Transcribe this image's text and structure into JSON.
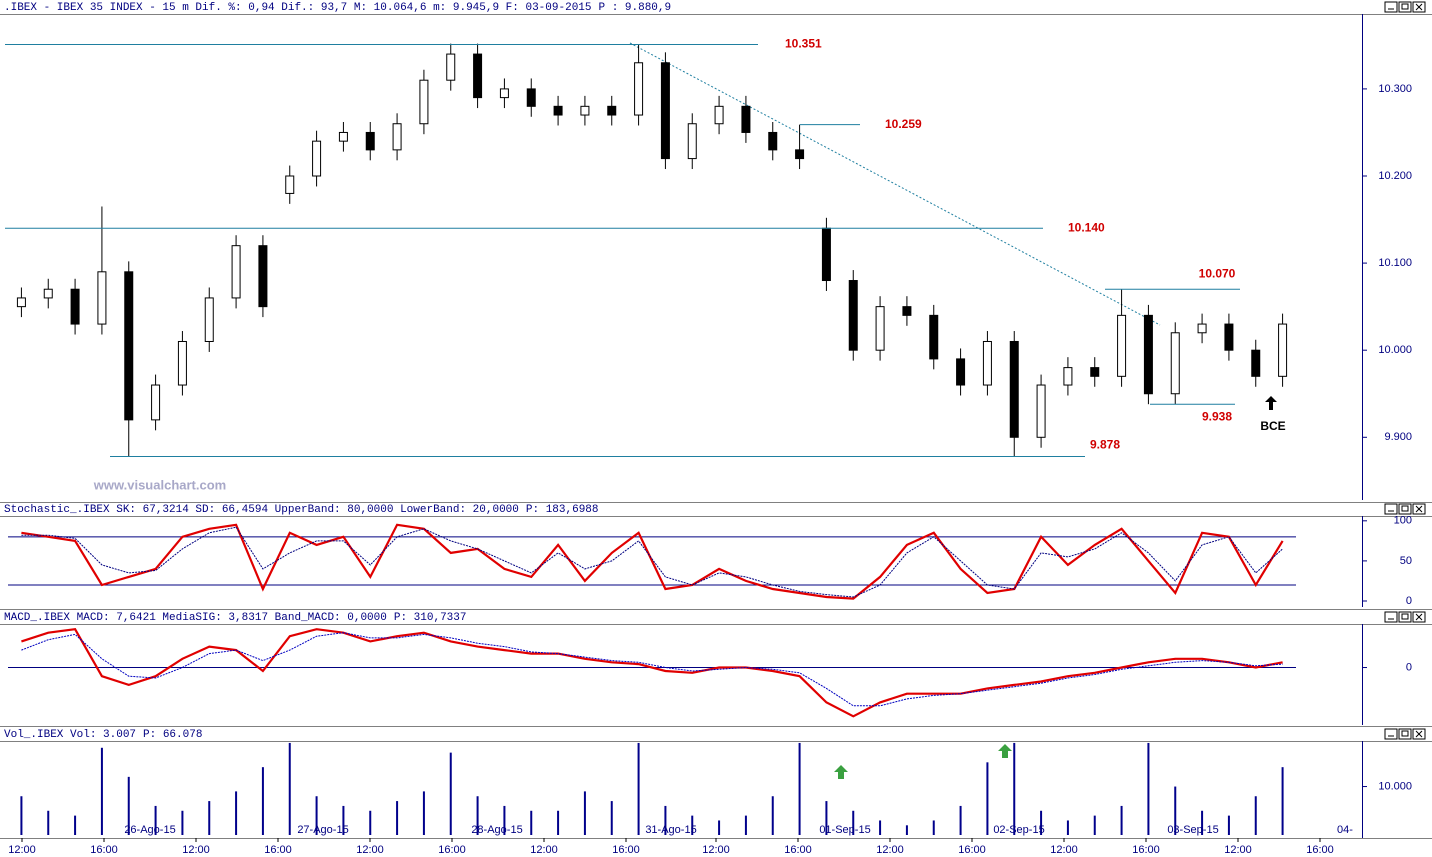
{
  "chart_data": [
    {
      "type": "candlestick",
      "title": ".IBEX - IBEX 35 INDEX -  15 m Dif. %: 0,94 Dif.: 93,7 M: 10.064,6 m: 9.945,9 F: 03-09-2015",
      "title_p": "P : 9.880,9",
      "watermark": "www.visualchart.com",
      "open": [
        10050,
        10060,
        10070,
        10030,
        10090,
        9920,
        9960,
        10010,
        10060,
        10120,
        10180,
        10200,
        10240,
        10250,
        10230,
        10260,
        10310,
        10340,
        10290,
        10300,
        10280,
        10270,
        10280,
        10270,
        10330,
        10220,
        10260,
        10280,
        10250,
        10230,
        10140,
        10080,
        10000,
        10050,
        10040,
        9990,
        9960,
        10010,
        9900,
        9960,
        9980,
        9970,
        10040,
        9950,
        10020,
        10030,
        10000,
        9970
      ],
      "high": [
        10072,
        10082,
        10082,
        10165,
        10102,
        9972,
        10022,
        10072,
        10132,
        10132,
        10212,
        10252,
        10262,
        10262,
        10272,
        10322,
        10352,
        10352,
        10312,
        10312,
        10292,
        10292,
        10292,
        10351,
        10342,
        10272,
        10292,
        10292,
        10262,
        10259,
        10152,
        10092,
        10062,
        10062,
        10052,
        10002,
        10022,
        10022,
        9972,
        9992,
        9992,
        10070,
        10052,
        10032,
        10042,
        10042,
        10012,
        10042
      ],
      "low": [
        10038,
        10048,
        10018,
        10018,
        9878,
        9908,
        9948,
        9998,
        10048,
        10038,
        10168,
        10188,
        10228,
        10218,
        10218,
        10248,
        10298,
        10278,
        10278,
        10268,
        10258,
        10258,
        10258,
        10258,
        10208,
        10208,
        10248,
        10238,
        10218,
        10208,
        10068,
        9988,
        9988,
        10028,
        9978,
        9948,
        9948,
        9878,
        9888,
        9948,
        9958,
        9958,
        9938,
        9938,
        10008,
        9988,
        9958,
        9958
      ],
      "close": [
        10060,
        10070,
        10030,
        10090,
        9920,
        9960,
        10010,
        10060,
        10120,
        10050,
        10200,
        10240,
        10250,
        10230,
        10260,
        10310,
        10340,
        10290,
        10300,
        10280,
        10270,
        10280,
        10270,
        10330,
        10220,
        10260,
        10280,
        10250,
        10230,
        10220,
        10080,
        10000,
        10050,
        10040,
        9990,
        9960,
        10010,
        9900,
        9960,
        9980,
        9970,
        10040,
        9950,
        10020,
        10030,
        10000,
        9970,
        10030
      ],
      "up_color": "#ffffff",
      "down_color": "#000000",
      "ylim": [
        9828,
        10386
      ],
      "yticks": [
        {
          "value": 9900,
          "label": "9.900"
        },
        {
          "value": 10000,
          "label": "10.000"
        },
        {
          "value": 10100,
          "label": "10.100"
        },
        {
          "value": 10200,
          "label": "10.200"
        },
        {
          "value": 10300,
          "label": "10.300"
        }
      ],
      "levels": [
        {
          "value": 10351,
          "label": "10.351"
        },
        {
          "value": 10259,
          "label": "10.259"
        },
        {
          "value": 10140,
          "label": "10.140"
        },
        {
          "value": 10070,
          "label": "10.070"
        },
        {
          "value": 9938,
          "label": "9.938"
        },
        {
          "value": 9878,
          "label": "9.878"
        }
      ],
      "annotation": "BCE"
    },
    {
      "type": "line",
      "title": "Stochastic_.IBEX SK: 67,3214 SD: 66,4594 UpperBand: 80,0000 LowerBand: 20,0000",
      "title_p": "P: 183,6988",
      "series": [
        {
          "name": "SK",
          "color": "#e00000",
          "values": [
            85,
            80,
            75,
            20,
            30,
            40,
            80,
            90,
            95,
            15,
            85,
            70,
            80,
            30,
            95,
            90,
            60,
            65,
            40,
            30,
            70,
            25,
            60,
            85,
            15,
            20,
            40,
            25,
            15,
            10,
            5,
            3,
            30,
            70,
            85,
            40,
            10,
            15,
            80,
            45,
            70,
            90,
            50,
            10,
            85,
            80,
            20,
            75
          ]
        },
        {
          "name": "SD",
          "color": "#000080",
          "values": [
            82,
            82,
            78,
            45,
            35,
            38,
            65,
            85,
            92,
            40,
            60,
            75,
            75,
            45,
            80,
            90,
            75,
            65,
            50,
            35,
            60,
            40,
            50,
            75,
            30,
            20,
            35,
            30,
            20,
            12,
            8,
            5,
            20,
            60,
            80,
            50,
            20,
            15,
            60,
            55,
            65,
            85,
            60,
            25,
            70,
            80,
            35,
            65
          ]
        }
      ],
      "bands": [
        20,
        80
      ],
      "ylim": [
        -7.5,
        106
      ],
      "yticks": [
        0,
        50,
        100
      ]
    },
    {
      "type": "line",
      "title": "MACD_.IBEX MACD: 7,6421 MediaSIG: 3,8317 Band_MACD: 0,0000",
      "title_p": "P: 310,7337",
      "series": [
        {
          "name": "MACD",
          "color": "#e00000",
          "values": [
            15,
            20,
            22,
            -5,
            -10,
            -5,
            5,
            12,
            10,
            -2,
            18,
            22,
            20,
            15,
            18,
            20,
            15,
            12,
            10,
            8,
            8,
            5,
            3,
            2,
            -2,
            -3,
            0,
            0,
            -2,
            -5,
            -20,
            -28,
            -20,
            -15,
            -15,
            -15,
            -12,
            -10,
            -8,
            -5,
            -3,
            0,
            3,
            5,
            5,
            3,
            0,
            3
          ]
        },
        {
          "name": "MediaSIG",
          "color": "#0000c0",
          "values": [
            10,
            16,
            19,
            5,
            -5,
            -6,
            0,
            8,
            10,
            4,
            10,
            18,
            20,
            17,
            17,
            19,
            17,
            14,
            12,
            9,
            8,
            6,
            4,
            3,
            0,
            -2,
            -1,
            0,
            -1,
            -3,
            -12,
            -22,
            -22,
            -18,
            -16,
            -15,
            -13,
            -11,
            -9,
            -6,
            -4,
            -1,
            1,
            3,
            4,
            3,
            1,
            2
          ]
        }
      ],
      "bands": [
        0
      ],
      "ylim": [
        -33,
        25
      ],
      "yticks": [
        0
      ]
    },
    {
      "type": "bar",
      "title": "Vol_.IBEX Vol: 3.007",
      "title_p": "P: 66.078",
      "values": [
        8000,
        5000,
        4000,
        18000,
        12000,
        6000,
        5000,
        7000,
        9000,
        14000,
        19000,
        8000,
        6000,
        5000,
        7000,
        9000,
        17000,
        8000,
        6000,
        5000,
        5000,
        9000,
        7000,
        19000,
        6000,
        4000,
        3000,
        4000,
        8000,
        19000,
        7000,
        5000,
        3000,
        2000,
        3000,
        6000,
        15000,
        19000,
        5000,
        3000,
        4000,
        6000,
        19000,
        10000,
        5000,
        4000,
        8000,
        14000
      ],
      "color": "#00008b",
      "ylim": [
        0,
        19400
      ],
      "yticks": [
        {
          "value": 10000,
          "label": "10.000"
        }
      ],
      "x_labels": [
        "12:00",
        "16:00",
        "12:00",
        "16:00",
        "12:00",
        "16:00",
        "12:00",
        "16:00",
        "12:00",
        "16:00",
        "12:00",
        "16:00",
        "12:00",
        "16:00",
        "12:00",
        "16:00"
      ],
      "date_labels": [
        "26-Ago-15",
        "27-Ago-15",
        "28-Ago-15",
        "31-Ago-15",
        "01-Sep-15",
        "02-Sep-15",
        "03-Sep-15",
        "04-"
      ]
    }
  ]
}
